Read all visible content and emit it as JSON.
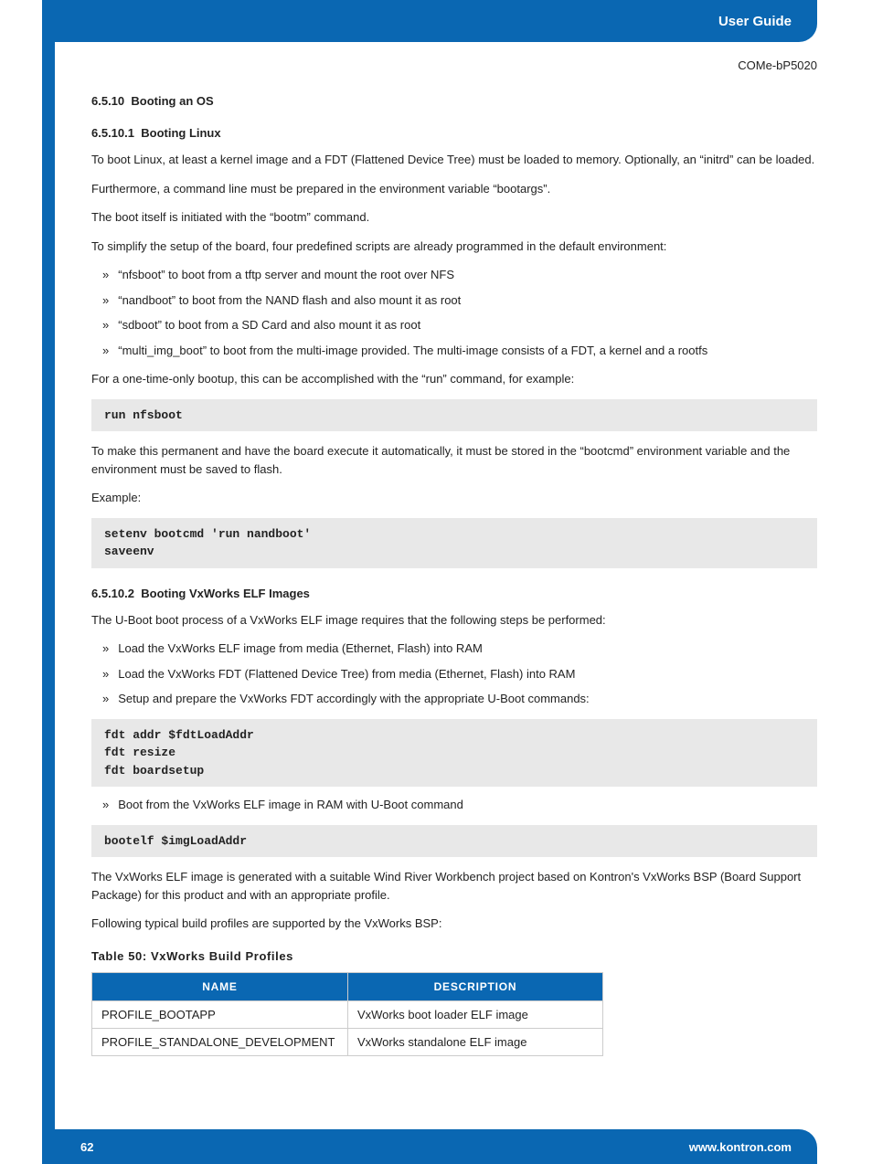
{
  "header": {
    "title": "User Guide"
  },
  "doc_code": "COMe-bP5020",
  "s1": {
    "num": "6.5.10",
    "title": "Booting an OS"
  },
  "s2": {
    "num": "6.5.10.1",
    "title": "Booting Linux",
    "p1": "To boot Linux, at least a kernel image and a FDT (Flattened Device Tree) must be loaded to memory. Optionally, an “initrd” can be loaded.",
    "p2": "Furthermore, a command line must be prepared in the environment variable “bootargs”.",
    "p3": "The boot itself is initiated with the “bootm” command.",
    "p4": "To simplify the setup of the board, four predefined scripts are already programmed in the default environment:",
    "bullets": [
      "“nfsboot” to boot from a tftp server and mount the root over NFS",
      "“nandboot” to boot from the NAND flash and also mount it as root",
      "“sdboot” to boot from a SD Card and also mount it as root",
      "“multi_img_boot” to boot from the multi-image provided. The multi-image consists of a FDT, a kernel and a rootfs"
    ],
    "p5": "For a one-time-only bootup, this can be accomplished with the “run” command, for example:",
    "code1": "run nfsboot",
    "p6": "To make this permanent and have the board execute it automatically, it must be stored in the “bootcmd” environment variable and the environment must be saved to flash.",
    "p7": "Example:",
    "code2": "setenv bootcmd 'run nandboot'\nsaveenv"
  },
  "s3": {
    "num": "6.5.10.2",
    "title": "Booting VxWorks ELF Images",
    "p1": "The U-Boot boot process of a VxWorks ELF image requires that the following steps be performed:",
    "bullets1": [
      "Load the VxWorks ELF image from media (Ethernet, Flash) into RAM",
      "Load the VxWorks FDT (Flattened Device Tree) from media (Ethernet, Flash) into RAM",
      "Setup and prepare the VxWorks FDT accordingly with the appropriate U-Boot commands:"
    ],
    "code1": "fdt addr $fdtLoadAddr\nfdt resize\nfdt boardsetup",
    "bullets2": [
      "Boot from the VxWorks ELF image in RAM with U-Boot command"
    ],
    "code2": "bootelf $imgLoadAddr",
    "p2": "The VxWorks ELF image is generated with a suitable Wind River Workbench project based on Kontron's VxWorks BSP (Board Support Package) for this product and with an appropriate profile.",
    "p3": "Following typical build profiles are supported by the VxWorks BSP:"
  },
  "table": {
    "caption": "Table 50: VxWorks Build Profiles",
    "columns": [
      "NAME",
      "DESCRIPTION"
    ],
    "rows": [
      [
        "PROFILE_BOOTAPP",
        "VxWorks boot loader ELF image"
      ],
      [
        "PROFILE_STANDALONE_DEVELOPMENT",
        "VxWorks standalone ELF image"
      ]
    ],
    "col_widths": [
      "280px",
      "280px"
    ]
  },
  "footer": {
    "page": "62",
    "url": "www.kontron.com"
  },
  "colors": {
    "brand_blue": "#0a67b2",
    "code_bg": "#e8e8e8",
    "border": "#cccccc",
    "text": "#222222"
  }
}
